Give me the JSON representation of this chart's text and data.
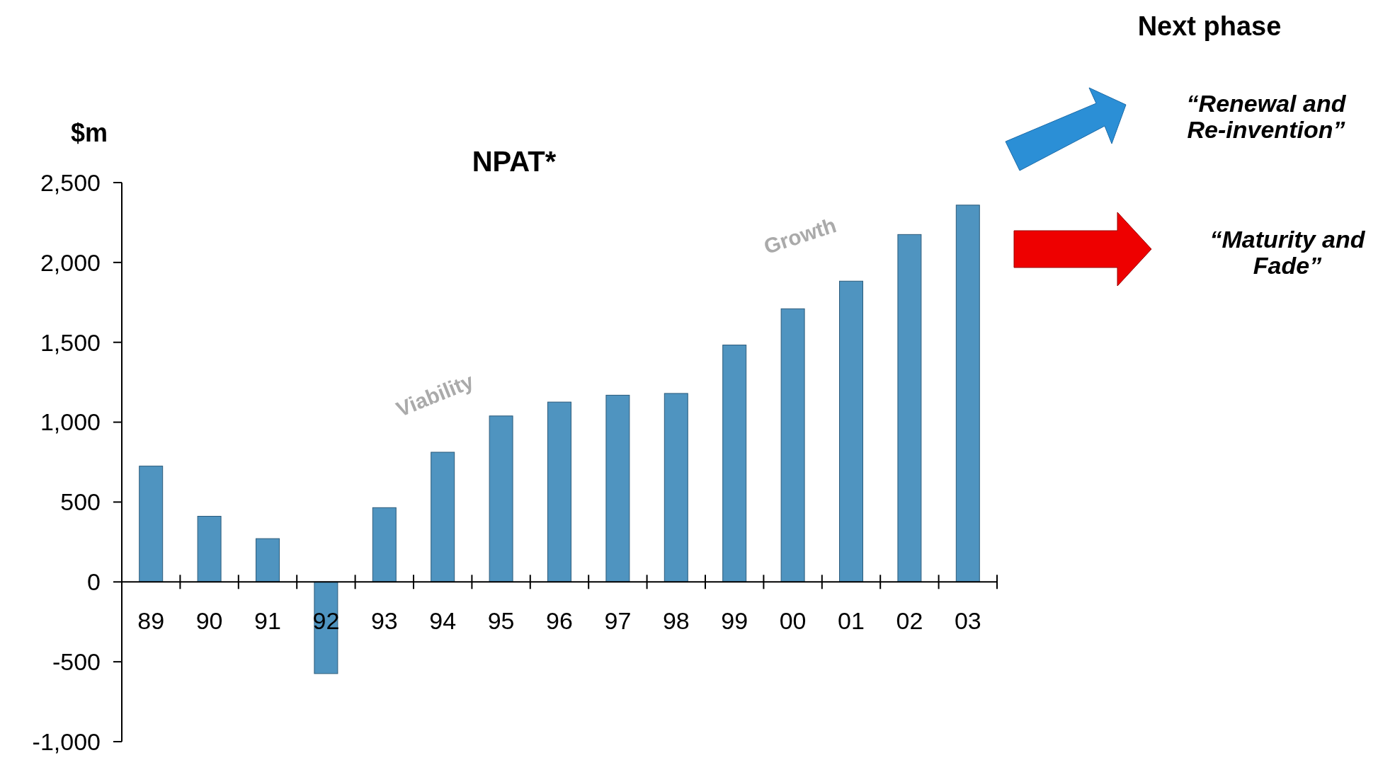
{
  "chart_data": {
    "type": "bar",
    "title": "NPAT*",
    "ylabel": "$m",
    "categories": [
      "89",
      "90",
      "91",
      "92",
      "93",
      "94",
      "95",
      "96",
      "97",
      "98",
      "99",
      "00",
      "01",
      "02",
      "03"
    ],
    "values": [
      725,
      411,
      271,
      -574,
      465,
      812,
      1039,
      1126,
      1169,
      1180,
      1483,
      1710,
      1883,
      2175,
      2359
    ],
    "color": "#4f94c0",
    "ylim": [
      -1000,
      2500
    ],
    "yticks": [
      {
        "value": -1000,
        "label": "-1,000"
      },
      -500,
      0,
      500,
      {
        "value": 1000,
        "label": "1,000"
      },
      {
        "value": 1500,
        "label": "1,500"
      },
      {
        "value": 2000,
        "label": "2,000"
      },
      {
        "value": 2500,
        "label": "2,500"
      }
    ],
    "grid": false,
    "annotations": [
      "Viability",
      "Growth",
      "Next phase",
      "“Renewal and Re-invention”",
      "“Maturity and Fade”"
    ]
  }
}
